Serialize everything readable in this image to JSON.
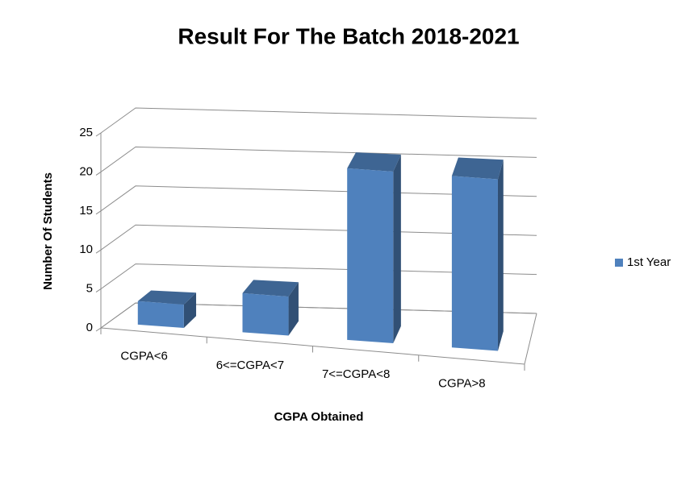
{
  "chart_data": {
    "type": "bar",
    "title": "Result For The Batch 2018-2021",
    "x_label": "CGPA Obtained",
    "y_label": "Number Of Students",
    "categories": [
      "CGPA<6",
      "6<=CGPA<7",
      "7<=CGPA<8",
      "CGPA>8"
    ],
    "series": [
      {
        "name": "1st Year",
        "color": "#4f81bd",
        "values": [
          3,
          5,
          22,
          22
        ]
      }
    ],
    "ylim": [
      0,
      25
    ],
    "yticks": [
      0,
      5,
      10,
      15,
      20,
      25
    ],
    "grid": true,
    "legend": "right"
  }
}
